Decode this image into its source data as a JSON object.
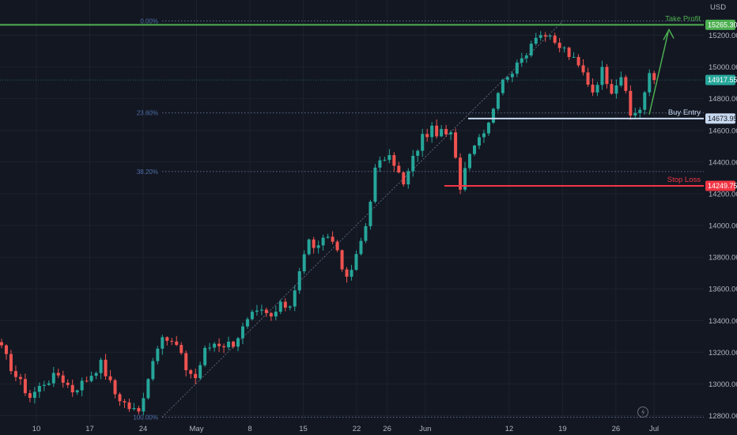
{
  "chart_data": {
    "type": "candlestick",
    "currency_label": "USD",
    "ylim": [
      12780,
      15300
    ],
    "y_ticks": [
      12800,
      13000,
      13200,
      13400,
      13600,
      13800,
      14000,
      14200,
      14400,
      14600,
      14800,
      15000,
      15200
    ],
    "y_tick_labels": [
      "12800.00",
      "13000.00",
      "13200.00",
      "13400.00",
      "13600.00",
      "13800.00",
      "14000.00",
      "14200.00",
      "14400.00",
      "14600.00",
      "14800.00",
      "15000.00",
      "15200.00"
    ],
    "x_ticks": [
      {
        "label": "10",
        "day": 10
      },
      {
        "label": "17",
        "day": 17
      },
      {
        "label": "24",
        "day": 24
      },
      {
        "label": "May",
        "day": 31
      },
      {
        "label": "8",
        "day": 38
      },
      {
        "label": "15",
        "day": 45
      },
      {
        "label": "22",
        "day": 52
      },
      {
        "label": "26",
        "day": 56
      },
      {
        "label": "Jun",
        "day": 61
      },
      {
        "label": "12",
        "day": 72
      },
      {
        "label": "19",
        "day": 79
      },
      {
        "label": "26",
        "day": 86
      },
      {
        "label": "Jul",
        "day": 91
      }
    ],
    "fib_levels": [
      {
        "label": "0.00%",
        "value": 15290
      },
      {
        "label": "23.60%",
        "value": 14710
      },
      {
        "label": "38.20%",
        "value": 14340
      },
      {
        "label": "100.00%",
        "value": 12790
      }
    ],
    "levels": [
      {
        "name": "Take Profit",
        "value": 15265.3,
        "badge": "15265.30",
        "color": "#4caf50"
      },
      {
        "name": "Buy Entry",
        "value": 14673.95,
        "badge": "14673.95",
        "color": "#c8d9ef"
      },
      {
        "name": "Stop Loss",
        "value": 14249.75,
        "badge": "14249.75",
        "color": "#f23645"
      }
    ],
    "last_price": {
      "value": 14917.55,
      "badge": "14917.55",
      "color": "#26a69a"
    },
    "up_color": "#26a69a",
    "down_color": "#ef5350",
    "close_path": [
      [
        0,
        13220
      ],
      [
        3,
        13050
      ],
      [
        6,
        12920
      ],
      [
        9,
        13010
      ],
      [
        12,
        13060
      ],
      [
        15,
        12960
      ],
      [
        18,
        13030
      ],
      [
        21,
        13130
      ],
      [
        24,
        12940
      ],
      [
        27,
        12850
      ],
      [
        29,
        12820
      ],
      [
        31,
        13050
      ],
      [
        33,
        13250
      ],
      [
        35,
        13280
      ],
      [
        37,
        13240
      ],
      [
        39,
        13100
      ],
      [
        41,
        13040
      ],
      [
        43,
        13210
      ],
      [
        45,
        13260
      ],
      [
        47,
        13250
      ],
      [
        49,
        13260
      ],
      [
        51,
        13350
      ],
      [
        53,
        13430
      ],
      [
        55,
        13450
      ],
      [
        57,
        13420
      ],
      [
        59,
        13490
      ],
      [
        61,
        13500
      ],
      [
        63,
        13720
      ],
      [
        65,
        13900
      ],
      [
        67,
        13850
      ],
      [
        69,
        13940
      ],
      [
        71,
        13850
      ],
      [
        73,
        13650
      ],
      [
        75,
        13800
      ],
      [
        77,
        14000
      ],
      [
        79,
        14350
      ],
      [
        81,
        14430
      ],
      [
        83,
        14400
      ],
      [
        85,
        14250
      ],
      [
        87,
        14420
      ],
      [
        89,
        14560
      ],
      [
        91,
        14600
      ],
      [
        93,
        14580
      ],
      [
        95,
        14570
      ],
      [
        97,
        14250
      ],
      [
        99,
        14480
      ],
      [
        101,
        14560
      ],
      [
        103,
        14660
      ],
      [
        105,
        14850
      ],
      [
        107,
        14960
      ],
      [
        109,
        15000
      ],
      [
        111,
        15100
      ],
      [
        113,
        15210
      ],
      [
        115,
        15200
      ],
      [
        117,
        15140
      ],
      [
        119,
        15110
      ],
      [
        121,
        15040
      ],
      [
        123,
        14960
      ],
      [
        125,
        14850
      ],
      [
        127,
        14980
      ],
      [
        129,
        14860
      ],
      [
        131,
        14950
      ],
      [
        133,
        14690
      ],
      [
        135,
        14740
      ],
      [
        137,
        14940
      ],
      [
        138,
        14917
      ]
    ],
    "annotations": [
      "Take Profit",
      "Buy Entry",
      "Stop Loss"
    ]
  }
}
